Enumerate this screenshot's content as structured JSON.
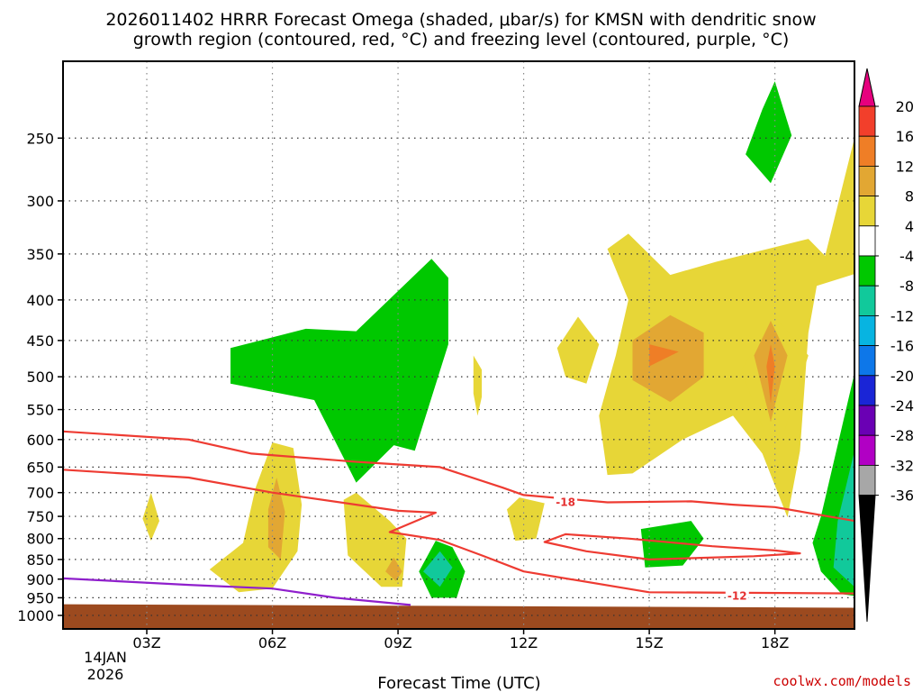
{
  "title_line1": "2026011402 HRRR Forecast Omega (shaded, μbar/s) for KMSN with dendritic snow",
  "title_line2": "growth region (contoured, red, °C) and freezing level (contoured, purple, °C)",
  "credit": "coolwx.com/models",
  "colors": {
    "ground": "#9c4a1f",
    "snow_growth_contour": "#ee3b32",
    "freezing_level_contour": "#8f1fcc",
    "grid": "#888888"
  },
  "chart_data": {
    "type": "contour",
    "xlabel": "Forecast Time (UTC)",
    "x_ticks": [
      "03Z",
      "06Z",
      "09Z",
      "12Z",
      "15Z",
      "18Z"
    ],
    "x_tick_hours": [
      3,
      6,
      9,
      12,
      15,
      18
    ],
    "x_range_hours": [
      1.0,
      19.9
    ],
    "date_label": [
      "14JAN",
      "2026"
    ],
    "y_ticks": [
      250,
      300,
      350,
      400,
      450,
      500,
      550,
      600,
      650,
      700,
      750,
      800,
      850,
      900,
      950,
      1000
    ],
    "y_scale": "log-pressure (hPa), inverted",
    "y_range_hPa": [
      1040,
      200
    ],
    "grid": true,
    "colorbar": {
      "units": "μbar/s",
      "levels": [
        "20",
        "16",
        "12",
        "8",
        "4",
        "-4",
        "-8",
        "-12",
        "-16",
        "-20",
        "-24",
        "-28",
        "-32",
        "-36"
      ],
      "colors": [
        "#e6007e",
        "#f23f2b",
        "#ef7e26",
        "#e2a733",
        "#e7d637",
        "#ffffff",
        "#00c800",
        "#11c99b",
        "#07b4e1",
        "#0d77e9",
        "#1a25d6",
        "#6a00b4",
        "#b100c4",
        "#a7a7a7",
        "#000000"
      ]
    },
    "omega_regions": [
      {
        "level": "4 to 8",
        "color": "#e7d637",
        "points": [
          [
            14.2,
            470
          ],
          [
            14.5,
            400
          ],
          [
            14.0,
            345
          ],
          [
            14.5,
            330
          ],
          [
            15.5,
            372
          ],
          [
            16.6,
            358
          ],
          [
            18.8,
            335
          ],
          [
            19.2,
            352
          ],
          [
            19.9,
            250
          ],
          [
            19.9,
            371
          ],
          [
            19.0,
            384
          ],
          [
            18.8,
            440
          ],
          [
            18.6,
            620
          ],
          [
            18.3,
            752
          ],
          [
            17.7,
            625
          ],
          [
            17.0,
            560
          ],
          [
            15.8,
            600
          ],
          [
            14.6,
            662
          ],
          [
            14.0,
            665
          ],
          [
            13.8,
            560
          ]
        ]
      },
      {
        "level": "8 to 12",
        "color": "#e2a733",
        "points": [
          [
            14.6,
            450
          ],
          [
            15.5,
            418
          ],
          [
            16.3,
            440
          ],
          [
            16.3,
            500
          ],
          [
            15.5,
            538
          ],
          [
            14.6,
            505
          ]
        ]
      },
      {
        "level": "12 to 16",
        "color": "#ef7e26",
        "points": [
          [
            15.0,
            455
          ],
          [
            15.7,
            465
          ],
          [
            15.0,
            485
          ]
        ]
      },
      {
        "level": "4 to 8",
        "color": "#e7d637",
        "points": [
          [
            17.2,
            490
          ],
          [
            18.0,
            420
          ],
          [
            18.8,
            470
          ],
          [
            18.0,
            640
          ]
        ]
      },
      {
        "level": "8 to 12",
        "color": "#e2a733",
        "points": [
          [
            17.5,
            470
          ],
          [
            17.9,
            425
          ],
          [
            18.3,
            470
          ],
          [
            17.9,
            570
          ]
        ]
      },
      {
        "level": "12 to 16",
        "color": "#ef7e26",
        "points": [
          [
            17.8,
            485
          ],
          [
            17.9,
            455
          ],
          [
            18.0,
            485
          ],
          [
            17.9,
            540
          ]
        ]
      },
      {
        "level": "4 to 8",
        "color": "#e7d637",
        "points": [
          [
            4.5,
            875
          ],
          [
            5.3,
            810
          ],
          [
            5.6,
            690
          ],
          [
            6.0,
            605
          ],
          [
            6.5,
            615
          ],
          [
            6.7,
            725
          ],
          [
            6.6,
            830
          ],
          [
            6.0,
            925
          ],
          [
            5.2,
            935
          ]
        ]
      },
      {
        "level": "8 to 12",
        "color": "#e2a733",
        "points": [
          [
            5.9,
            735
          ],
          [
            6.1,
            670
          ],
          [
            6.3,
            740
          ],
          [
            6.2,
            850
          ],
          [
            5.9,
            820
          ]
        ]
      },
      {
        "level": "4 to 8",
        "color": "#e7d637",
        "points": [
          [
            7.7,
            715
          ],
          [
            8.0,
            700
          ],
          [
            8.8,
            760
          ],
          [
            9.2,
            800
          ],
          [
            9.1,
            920
          ],
          [
            8.6,
            920
          ],
          [
            7.8,
            840
          ]
        ]
      },
      {
        "level": "8 to 12",
        "color": "#e2a733",
        "points": [
          [
            8.7,
            880
          ],
          [
            8.9,
            845
          ],
          [
            9.1,
            880
          ],
          [
            8.95,
            905
          ]
        ]
      },
      {
        "level": "4 to 8",
        "color": "#e7d637",
        "points": [
          [
            11.6,
            735
          ],
          [
            11.9,
            710
          ],
          [
            12.5,
            722
          ],
          [
            12.3,
            800
          ],
          [
            11.8,
            805
          ]
        ]
      },
      {
        "level": "4 to 8",
        "color": "#e7d637",
        "points": [
          [
            2.9,
            755
          ],
          [
            3.1,
            700
          ],
          [
            3.3,
            760
          ],
          [
            3.1,
            805
          ]
        ]
      },
      {
        "level": "4 to 8",
        "color": "#e7d637",
        "points": [
          [
            10.8,
            470
          ],
          [
            11.0,
            490
          ],
          [
            11.0,
            530
          ],
          [
            10.9,
            560
          ],
          [
            10.8,
            525
          ]
        ]
      },
      {
        "level": "4 to 8",
        "color": "#e7d637",
        "points": [
          [
            12.8,
            460
          ],
          [
            13.3,
            420
          ],
          [
            13.8,
            455
          ],
          [
            13.5,
            510
          ],
          [
            13.0,
            500
          ]
        ]
      },
      {
        "level": "-4 to -8",
        "color": "#00c800",
        "points": [
          [
            5.0,
            460
          ],
          [
            6.8,
            435
          ],
          [
            8.0,
            438
          ],
          [
            9.8,
            355
          ],
          [
            10.2,
            375
          ],
          [
            10.2,
            455
          ],
          [
            9.4,
            620
          ],
          [
            8.9,
            610
          ],
          [
            8.0,
            680
          ],
          [
            7.0,
            535
          ],
          [
            5.0,
            510
          ]
        ]
      },
      {
        "level": "-4 to -8",
        "color": "#00c800",
        "points": [
          [
            17.3,
            262
          ],
          [
            17.7,
            230
          ],
          [
            18.0,
            212
          ],
          [
            18.4,
            248
          ],
          [
            17.9,
            285
          ]
        ]
      },
      {
        "level": "-4 to -8",
        "color": "#00c800",
        "points": [
          [
            14.8,
            778
          ],
          [
            16.0,
            760
          ],
          [
            16.3,
            800
          ],
          [
            15.8,
            865
          ],
          [
            14.9,
            870
          ]
        ]
      },
      {
        "level": "-4 to -8",
        "color": "#00c800",
        "points": [
          [
            9.5,
            880
          ],
          [
            9.9,
            805
          ],
          [
            10.3,
            820
          ],
          [
            10.6,
            880
          ],
          [
            10.4,
            950
          ],
          [
            9.8,
            950
          ]
        ]
      },
      {
        "level": "-8 to -12",
        "color": "#11c99b",
        "points": [
          [
            9.6,
            880
          ],
          [
            10.0,
            830
          ],
          [
            10.3,
            870
          ],
          [
            10.0,
            920
          ]
        ]
      },
      {
        "level": "-4 to -8",
        "color": "#00c800",
        "points": [
          [
            19.9,
            495
          ],
          [
            19.1,
            750
          ],
          [
            18.9,
            810
          ],
          [
            19.1,
            880
          ],
          [
            19.6,
            940
          ],
          [
            19.9,
            945
          ]
        ]
      },
      {
        "level": "-8 to -12",
        "color": "#11c99b",
        "points": [
          [
            19.9,
            620
          ],
          [
            19.5,
            760
          ],
          [
            19.4,
            870
          ],
          [
            19.9,
            920
          ]
        ]
      }
    ],
    "contours": [
      {
        "name": "-18",
        "color": "#ee3b32",
        "label": "-18",
        "label_at": [
          13.0,
          720
        ],
        "points": [
          [
            1.0,
            586
          ],
          [
            4.0,
            600
          ],
          [
            5.5,
            625
          ],
          [
            8.0,
            640
          ],
          [
            10.0,
            650
          ],
          [
            11.5,
            690
          ],
          [
            12.0,
            705
          ],
          [
            14.0,
            720
          ],
          [
            16.0,
            718
          ],
          [
            17.0,
            725
          ],
          [
            18.0,
            730
          ],
          [
            19.9,
            760
          ]
        ]
      },
      {
        "name": "-12",
        "color": "#ee3b32",
        "label": "-12",
        "label_at": [
          17.1,
          945
        ],
        "points": [
          [
            1.0,
            655
          ],
          [
            4.0,
            670
          ],
          [
            6.0,
            700
          ],
          [
            8.0,
            725
          ],
          [
            9.0,
            738
          ],
          [
            9.9,
            742
          ],
          [
            8.8,
            785
          ],
          [
            10.0,
            803
          ],
          [
            11.0,
            840
          ],
          [
            12.0,
            880
          ],
          [
            15.0,
            935
          ],
          [
            19.9,
            938
          ]
        ]
      },
      {
        "name": "-12 closed",
        "color": "#ee3b32",
        "points": [
          [
            12.5,
            808
          ],
          [
            13.0,
            790
          ],
          [
            14.5,
            800
          ],
          [
            16.5,
            818
          ],
          [
            18.0,
            828
          ],
          [
            18.6,
            835
          ],
          [
            17.5,
            842
          ],
          [
            15.0,
            850
          ],
          [
            13.5,
            830
          ]
        ]
      },
      {
        "name": "freezing level 0",
        "color": "#8f1fcc",
        "points": [
          [
            1.0,
            898
          ],
          [
            4.0,
            915
          ],
          [
            6.0,
            925
          ],
          [
            7.5,
            950
          ],
          [
            9.3,
            970
          ]
        ]
      }
    ],
    "ground_top_hPa": [
      [
        1.0,
        968
      ],
      [
        19.9,
        978
      ]
    ]
  }
}
